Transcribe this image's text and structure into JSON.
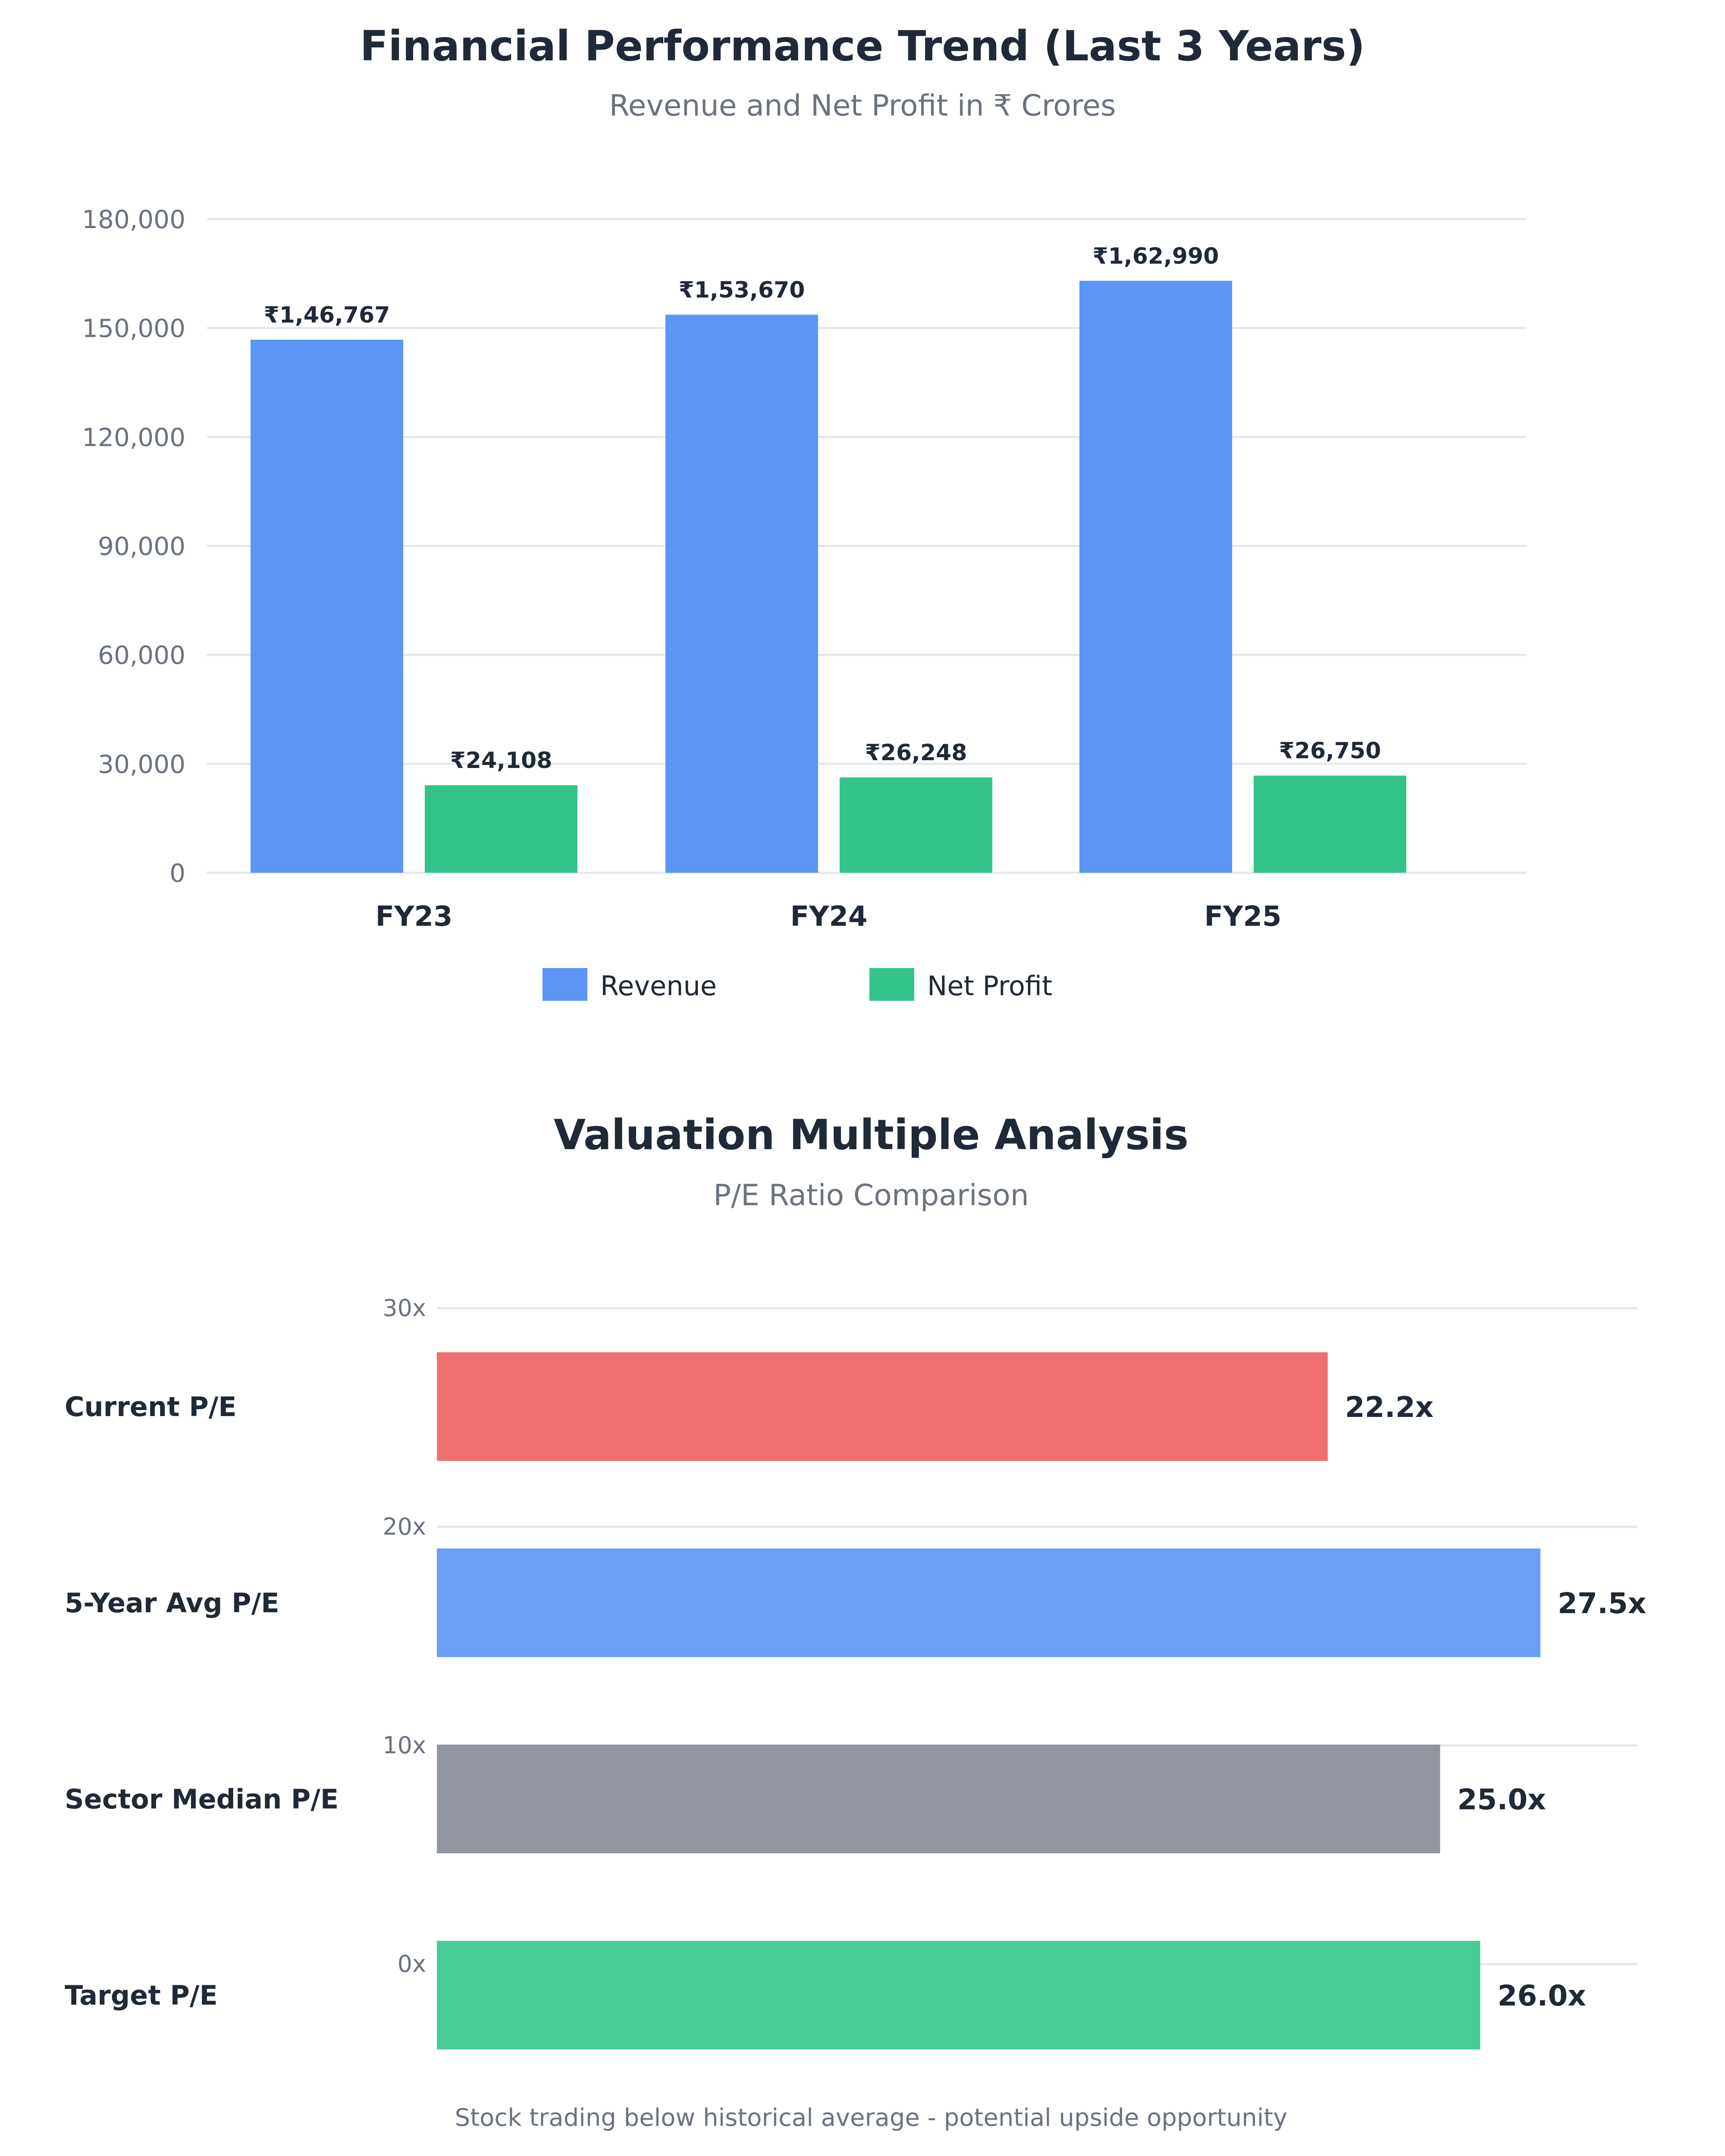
{
  "chart_data": [
    {
      "type": "bar",
      "title": "Financial Performance Trend (Last 3 Years)",
      "subtitle": "Revenue and Net Profit in ₹ Crores",
      "categories": [
        "FY23",
        "FY24",
        "FY25"
      ],
      "series": [
        {
          "name": "Revenue",
          "color": "#5b95f5",
          "values": [
            146767,
            153670,
            162990
          ],
          "labels": [
            "₹1,46,767",
            "₹1,53,670",
            "₹1,62,990"
          ]
        },
        {
          "name": "Net Profit",
          "color": "#34c48b",
          "values": [
            24108,
            26248,
            26750
          ],
          "labels": [
            "₹24,108",
            "₹26,248",
            "₹26,750"
          ]
        }
      ],
      "ylim": [
        0,
        180000
      ],
      "yticks": [
        "0",
        "30,000",
        "60,000",
        "90,000",
        "120,000",
        "150,000",
        "180,000"
      ],
      "grid": true,
      "legend": "bottom"
    },
    {
      "type": "bar",
      "orientation": "horizontal",
      "title": "Valuation Multiple Analysis",
      "subtitle": "P/E Ratio Comparison",
      "categories": [
        "Current P/E",
        "5-Year Avg P/E",
        "Sector Median P/E",
        "Target P/E"
      ],
      "values": [
        22.2,
        27.5,
        25.0,
        26.0
      ],
      "labels": [
        "22.2x",
        "27.5x",
        "25.0x",
        "26.0x"
      ],
      "colors": [
        "#f07070",
        "#6a9ff7",
        "#9095a0",
        "#48cc98"
      ],
      "xlim": [
        0,
        27.5
      ],
      "gridlabels": [
        "30x",
        "20x",
        "10x",
        "0x"
      ],
      "grid": true,
      "footnote": "Stock trading below historical average - potential upside opportunity"
    }
  ]
}
